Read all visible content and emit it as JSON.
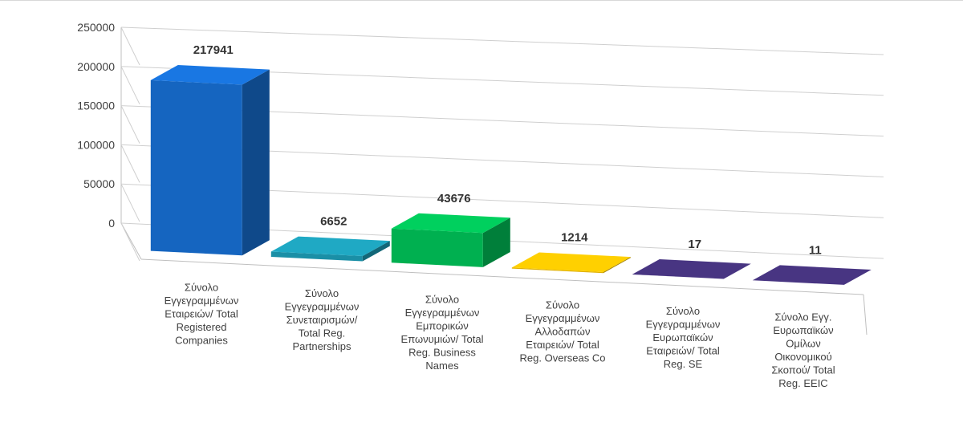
{
  "chart_data": {
    "type": "bar",
    "style": "3d-column",
    "categories": [
      "Σύνολο Εγγεγραμμένων Εταιρειών/ Total Registered Companies",
      "Σύνολο Εγγεγραμμένων Συνεταιρισμών/ Total Reg. Partnerships",
      "Σύνολο Εγγεγραμμένων Εμπορικών Επωνυμιών/ Total Reg. Business Names",
      "Σύνολο Εγγεγραμμένων Αλλοδαπών Εταιρειών/ Total Reg. Overseas Co",
      "Σύνολο Εγγεγραμμένων Ευρωπαϊκών Εταιρειών/ Total Reg. SE",
      "Σύνολο Εγγ. Ευρωπαϊκών Ομίλων Οικονομικού Σκοπού/ Total Reg. EEIC"
    ],
    "category_lines": [
      [
        "Σύνολο",
        "Εγγεγραμμένων",
        "Εταιρειών/ Total",
        "Registered",
        "Companies"
      ],
      [
        "Σύνολο",
        "Εγγεγραμμένων",
        "Συνεταιρισμών/",
        "Total Reg.",
        "Partnerships"
      ],
      [
        "Σύνολο",
        "Εγγεγραμμένων",
        "Εμπορικών",
        "Επωνυμιών/ Total",
        "Reg. Business",
        "Names"
      ],
      [
        "Σύνολο",
        "Εγγεγραμμένων",
        "Αλλοδαπών",
        "Εταιρειών/ Total",
        "Reg. Overseas Co"
      ],
      [
        "Σύνολο",
        "Εγγεγραμμένων",
        "Ευρωπαϊκών",
        "Εταιρειών/ Total",
        "Reg. SE"
      ],
      [
        "Σύνολο Εγγ.",
        "Ευρωπαϊκών",
        "Ομίλων",
        "Οικονομικού",
        "Σκοπού/ Total",
        "Reg. EEIC"
      ]
    ],
    "values": [
      217941,
      6652,
      43676,
      1214,
      17,
      11
    ],
    "data_labels": [
      "217941",
      "6652",
      "43676",
      "1214",
      "17",
      "11"
    ],
    "colors": [
      "#1565c0",
      "#1a8fa6",
      "#00b050",
      "#e0b000",
      "#3d2d6e",
      "#3d2d6e"
    ],
    "y_ticks": [
      "0",
      "50000",
      "100000",
      "150000",
      "200000",
      "250000"
    ],
    "ylim": [
      0,
      250000
    ],
    "title": "",
    "xlabel": "",
    "ylabel": "",
    "grid": true,
    "legend": "none"
  }
}
